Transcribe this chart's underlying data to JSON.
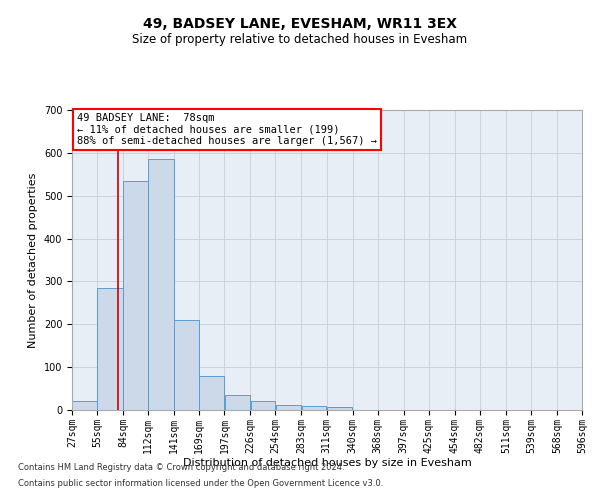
{
  "title": "49, BADSEY LANE, EVESHAM, WR11 3EX",
  "subtitle": "Size of property relative to detached houses in Evesham",
  "xlabel": "Distribution of detached houses by size in Evesham",
  "ylabel": "Number of detached properties",
  "footnote1": "Contains HM Land Registry data © Crown copyright and database right 2024.",
  "footnote2": "Contains public sector information licensed under the Open Government Licence v3.0.",
  "bar_color": "#ccd9e8",
  "bar_edge_color": "#5b9bd5",
  "annotation_box_text": "49 BADSEY LANE:  78sqm\n← 11% of detached houses are smaller (199)\n88% of semi-detached houses are larger (1,567) →",
  "vline_x": 78,
  "vline_color": "#cc0000",
  "bin_edges": [
    27,
    55,
    84,
    112,
    141,
    169,
    197,
    226,
    254,
    283,
    311,
    340,
    368,
    397,
    425,
    454,
    482,
    511,
    539,
    568,
    596
  ],
  "bar_heights": [
    22,
    285,
    535,
    585,
    210,
    80,
    34,
    22,
    12,
    10,
    6,
    0,
    0,
    0,
    0,
    0,
    0,
    0,
    0,
    0
  ],
  "ylim": [
    0,
    700
  ],
  "yticks": [
    0,
    100,
    200,
    300,
    400,
    500,
    600,
    700
  ],
  "background_color": "#ffffff",
  "ax_background_color": "#e8eef5",
  "grid_color": "#c8d4e0",
  "title_fontsize": 10,
  "subtitle_fontsize": 8.5,
  "ylabel_fontsize": 8,
  "xlabel_fontsize": 8,
  "tick_fontsize": 7,
  "footnote_fontsize": 6,
  "annot_fontsize": 7.5
}
